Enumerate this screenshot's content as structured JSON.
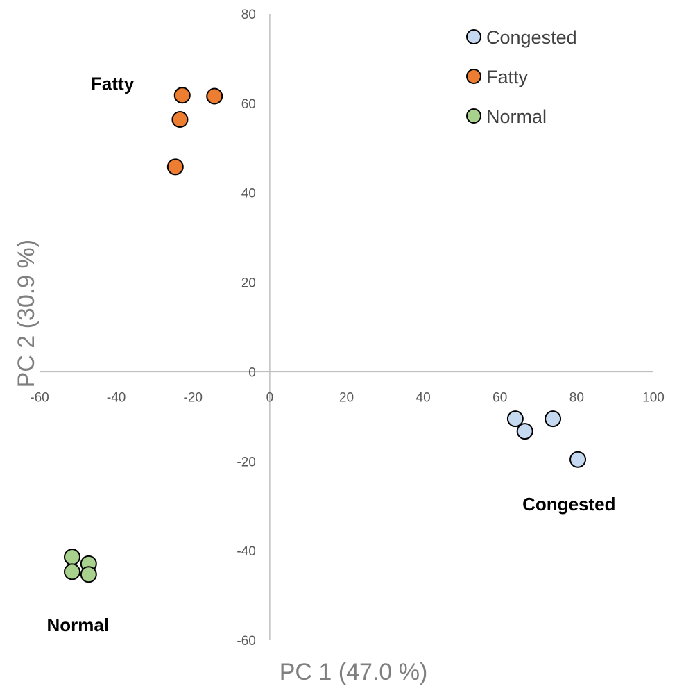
{
  "chart_data": {
    "type": "scatter",
    "title": "",
    "xlabel": "PC 1 (47.0 %)",
    "ylabel": "PC 2 (30.9 %)",
    "xlim": [
      -60,
      100
    ],
    "ylim": [
      -60,
      80
    ],
    "xticks": [
      -60,
      -40,
      -20,
      0,
      20,
      40,
      60,
      80,
      100
    ],
    "yticks": [
      -60,
      -40,
      -20,
      0,
      20,
      40,
      60,
      80
    ],
    "grid": false,
    "legend_position": "top-right",
    "series": [
      {
        "name": "Congested",
        "color": "#c5d9f1",
        "points": [
          [
            64,
            -10.5
          ],
          [
            66.5,
            -13.3
          ],
          [
            73.8,
            -10.5
          ],
          [
            80.3,
            -19.6
          ]
        ]
      },
      {
        "name": "Fatty",
        "color": "#ed7d31",
        "points": [
          [
            -22.8,
            61.8
          ],
          [
            -14.4,
            61.6
          ],
          [
            -23.4,
            56.4
          ],
          [
            -24.6,
            45.8
          ]
        ]
      },
      {
        "name": "Normal",
        "color": "#a9d18e",
        "points": [
          [
            -51.5,
            -41.4
          ],
          [
            -51.5,
            -44.7
          ],
          [
            -47.2,
            -42.9
          ],
          [
            -47.2,
            -45.3
          ]
        ]
      }
    ],
    "annotations": [
      {
        "text": "Fatty",
        "x": -41,
        "y": 63
      },
      {
        "text": "Congested",
        "x": 78,
        "y": -31
      },
      {
        "text": "Normal",
        "x": -50,
        "y": -58
      }
    ]
  }
}
